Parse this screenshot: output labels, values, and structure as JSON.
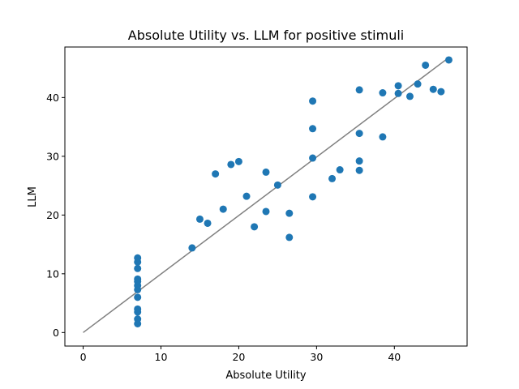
{
  "chart_data": {
    "type": "scatter",
    "title": "Absolute Utility vs. LLM for positive stimuli",
    "xlabel": "Absolute Utility",
    "ylabel": "LLM",
    "xlim": [
      -2.35,
      49.35
    ],
    "ylim": [
      -2.3,
      48.6
    ],
    "xticks": [
      0,
      10,
      20,
      30,
      40
    ],
    "yticks": [
      0,
      10,
      20,
      30,
      40
    ],
    "grid": false,
    "colors": {
      "points": "#1f77b4",
      "fit_line": "#808080"
    },
    "series": [
      {
        "name": "stimuli",
        "points": [
          [
            7,
            1.5
          ],
          [
            7,
            2.3
          ],
          [
            7,
            3.5
          ],
          [
            7,
            4.0
          ],
          [
            7,
            6.0
          ],
          [
            7,
            7.3
          ],
          [
            7,
            8.0
          ],
          [
            7,
            8.7
          ],
          [
            7,
            9.1
          ],
          [
            7,
            10.9
          ],
          [
            7,
            12.0
          ],
          [
            7,
            12.7
          ],
          [
            14,
            14.4
          ],
          [
            15,
            19.3
          ],
          [
            16,
            18.6
          ],
          [
            17,
            27.0
          ],
          [
            18,
            21.0
          ],
          [
            19,
            28.6
          ],
          [
            20,
            29.1
          ],
          [
            21,
            23.2
          ],
          [
            22,
            18.0
          ],
          [
            23.5,
            27.3
          ],
          [
            23.5,
            20.6
          ],
          [
            25,
            25.1
          ],
          [
            26.5,
            20.3
          ],
          [
            26.5,
            16.2
          ],
          [
            29.5,
            39.4
          ],
          [
            29.5,
            34.7
          ],
          [
            29.5,
            29.7
          ],
          [
            29.5,
            23.1
          ],
          [
            32,
            26.2
          ],
          [
            33,
            27.7
          ],
          [
            35.5,
            41.3
          ],
          [
            35.5,
            33.9
          ],
          [
            35.5,
            29.2
          ],
          [
            35.5,
            27.6
          ],
          [
            38.5,
            40.8
          ],
          [
            38.5,
            33.3
          ],
          [
            40.5,
            42.0
          ],
          [
            40.5,
            40.7
          ],
          [
            42,
            40.2
          ],
          [
            43,
            42.3
          ],
          [
            44,
            45.5
          ],
          [
            45,
            41.4
          ],
          [
            46,
            41.0
          ],
          [
            47,
            46.4
          ]
        ]
      }
    ],
    "fit_line": {
      "x": [
        0,
        47
      ],
      "y": [
        0,
        46.8
      ]
    }
  }
}
